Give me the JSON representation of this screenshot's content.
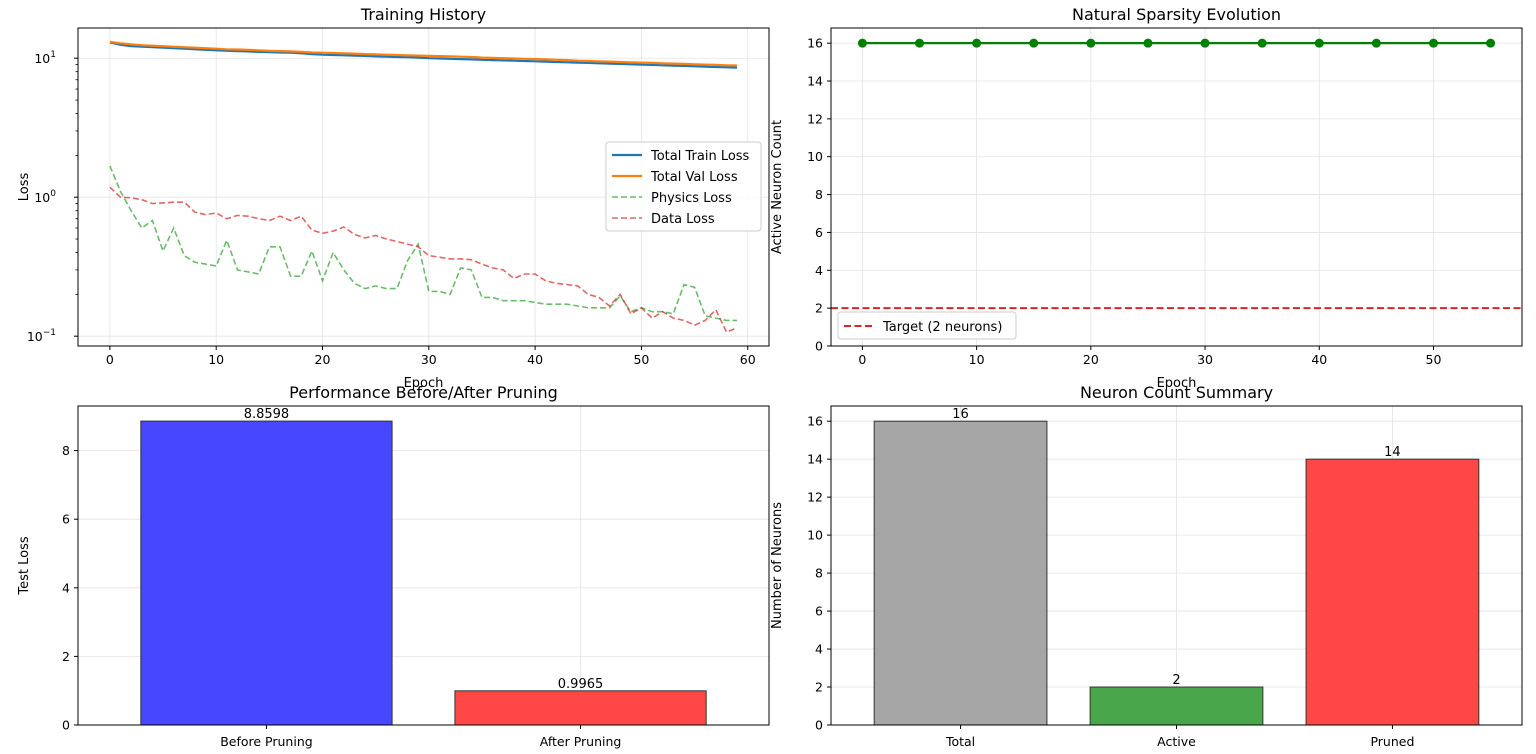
{
  "chart_data": [
    {
      "type": "line",
      "title": "Training History",
      "xlabel": "Epoch",
      "ylabel": "Loss",
      "yscale": "log",
      "xlim": [
        -3,
        62
      ],
      "ylim": [
        0.085,
        16.5
      ],
      "xticks": [
        0,
        10,
        20,
        30,
        40,
        50,
        60
      ],
      "yticks": [
        {
          "v": 10,
          "label": "10",
          "exp": "1"
        },
        {
          "v": 1,
          "label": "10",
          "exp": "0"
        },
        {
          "v": 0.1,
          "label": "10",
          "exp": "−1"
        }
      ],
      "grid": true,
      "legend_position": "center-right",
      "x": [
        0,
        1,
        2,
        3,
        4,
        5,
        6,
        7,
        8,
        9,
        10,
        11,
        12,
        13,
        14,
        15,
        16,
        17,
        18,
        19,
        20,
        21,
        22,
        23,
        24,
        25,
        26,
        27,
        28,
        29,
        30,
        31,
        32,
        33,
        34,
        35,
        36,
        37,
        38,
        39,
        40,
        41,
        42,
        43,
        44,
        45,
        46,
        47,
        48,
        49,
        50,
        51,
        52,
        53,
        54,
        55,
        56,
        57,
        58,
        59
      ],
      "series": [
        {
          "name": "Total Train Loss",
          "color": "#1f77b4",
          "style": "solid",
          "values": [
            13.0,
            12.5,
            12.2,
            12.1,
            12.0,
            11.9,
            11.8,
            11.7,
            11.6,
            11.5,
            11.4,
            11.3,
            11.25,
            11.2,
            11.1,
            11.05,
            11.0,
            10.95,
            10.85,
            10.7,
            10.6,
            10.55,
            10.5,
            10.45,
            10.4,
            10.3,
            10.25,
            10.2,
            10.15,
            10.1,
            10.0,
            9.95,
            9.9,
            9.85,
            9.8,
            9.75,
            9.7,
            9.65,
            9.6,
            9.55,
            9.5,
            9.45,
            9.4,
            9.35,
            9.3,
            9.25,
            9.2,
            9.15,
            9.1,
            9.05,
            9.0,
            8.95,
            8.9,
            8.85,
            8.8,
            8.75,
            8.7,
            8.65,
            8.6,
            8.55
          ]
        },
        {
          "name": "Total Val Loss",
          "color": "#ff7f0e",
          "style": "solid",
          "values": [
            13.1,
            12.8,
            12.6,
            12.4,
            12.3,
            12.2,
            12.1,
            12.0,
            11.9,
            11.8,
            11.7,
            11.6,
            11.55,
            11.5,
            11.4,
            11.3,
            11.25,
            11.2,
            11.1,
            11.0,
            10.95,
            10.9,
            10.85,
            10.8,
            10.7,
            10.65,
            10.6,
            10.55,
            10.5,
            10.45,
            10.4,
            10.35,
            10.3,
            10.25,
            10.2,
            10.1,
            10.05,
            10.0,
            9.95,
            9.9,
            9.85,
            9.8,
            9.75,
            9.7,
            9.6,
            9.55,
            9.5,
            9.45,
            9.4,
            9.35,
            9.3,
            9.25,
            9.2,
            9.15,
            9.1,
            9.05,
            9.0,
            8.95,
            8.9,
            8.86
          ]
        },
        {
          "name": "Physics Loss",
          "color": "#2ca02c",
          "style": "dashed",
          "values": [
            1.68,
            1.1,
            0.8,
            0.6,
            0.68,
            0.41,
            0.6,
            0.38,
            0.34,
            0.33,
            0.32,
            0.49,
            0.3,
            0.29,
            0.28,
            0.44,
            0.44,
            0.27,
            0.27,
            0.41,
            0.25,
            0.4,
            0.3,
            0.24,
            0.22,
            0.23,
            0.22,
            0.22,
            0.35,
            0.46,
            0.21,
            0.21,
            0.2,
            0.31,
            0.3,
            0.19,
            0.19,
            0.18,
            0.18,
            0.18,
            0.175,
            0.17,
            0.17,
            0.17,
            0.165,
            0.16,
            0.16,
            0.16,
            0.195,
            0.15,
            0.16,
            0.15,
            0.15,
            0.145,
            0.235,
            0.225,
            0.14,
            0.135,
            0.13,
            0.13
          ]
        },
        {
          "name": "Data Loss",
          "color": "#d62728",
          "style": "dashed",
          "values": [
            1.18,
            1.0,
            0.99,
            0.96,
            0.9,
            0.91,
            0.92,
            0.92,
            0.78,
            0.75,
            0.77,
            0.7,
            0.74,
            0.73,
            0.7,
            0.68,
            0.73,
            0.68,
            0.73,
            0.58,
            0.55,
            0.57,
            0.61,
            0.54,
            0.51,
            0.53,
            0.5,
            0.48,
            0.46,
            0.44,
            0.38,
            0.37,
            0.36,
            0.36,
            0.355,
            0.33,
            0.31,
            0.3,
            0.26,
            0.28,
            0.28,
            0.25,
            0.24,
            0.235,
            0.23,
            0.2,
            0.19,
            0.165,
            0.2,
            0.145,
            0.16,
            0.135,
            0.15,
            0.135,
            0.13,
            0.12,
            0.13,
            0.155,
            0.107,
            0.115
          ]
        }
      ]
    },
    {
      "type": "line",
      "title": "Natural Sparsity Evolution",
      "xlabel": "Epoch",
      "ylabel": "Active Neuron Count",
      "xlim": [
        -2.75,
        57.75
      ],
      "ylim": [
        0,
        16.8
      ],
      "xticks": [
        0,
        10,
        20,
        30,
        40,
        50
      ],
      "yticks": [
        0,
        2,
        4,
        6,
        8,
        10,
        12,
        14,
        16
      ],
      "grid": true,
      "legend_position": "lower-left",
      "x": [
        0,
        5,
        10,
        15,
        20,
        25,
        30,
        35,
        40,
        45,
        50,
        55
      ],
      "series": [
        {
          "name": "",
          "color": "#008000",
          "style": "solid-markers",
          "values": [
            16,
            16,
            16,
            16,
            16,
            16,
            16,
            16,
            16,
            16,
            16,
            16
          ]
        }
      ],
      "hline": {
        "value": 2,
        "name": "Target (2 neurons)",
        "color": "#d62728",
        "style": "dashed"
      }
    },
    {
      "type": "bar",
      "title": "Performance Before/After Pruning",
      "xlabel": "",
      "ylabel": "Test Loss",
      "ylim": [
        0,
        9.3
      ],
      "yticks": [
        0,
        2,
        4,
        6,
        8
      ],
      "grid": true,
      "categories": [
        "Before Pruning",
        "After Pruning"
      ],
      "values": [
        8.8598,
        0.9965
      ],
      "labels": [
        "8.8598",
        "0.9965"
      ],
      "colors": [
        "#4747ff",
        "#ff4747"
      ]
    },
    {
      "type": "bar",
      "title": "Neuron Count Summary",
      "xlabel": "",
      "ylabel": "Number of Neurons",
      "ylim": [
        0,
        16.8
      ],
      "yticks": [
        0,
        2,
        4,
        6,
        8,
        10,
        12,
        14,
        16
      ],
      "grid": true,
      "categories": [
        "Total",
        "Active",
        "Pruned"
      ],
      "values": [
        16,
        2,
        14
      ],
      "labels": [
        "16",
        "2",
        "14"
      ],
      "colors": [
        "#a6a6a6",
        "#4aa64a",
        "#ff4747"
      ]
    }
  ]
}
